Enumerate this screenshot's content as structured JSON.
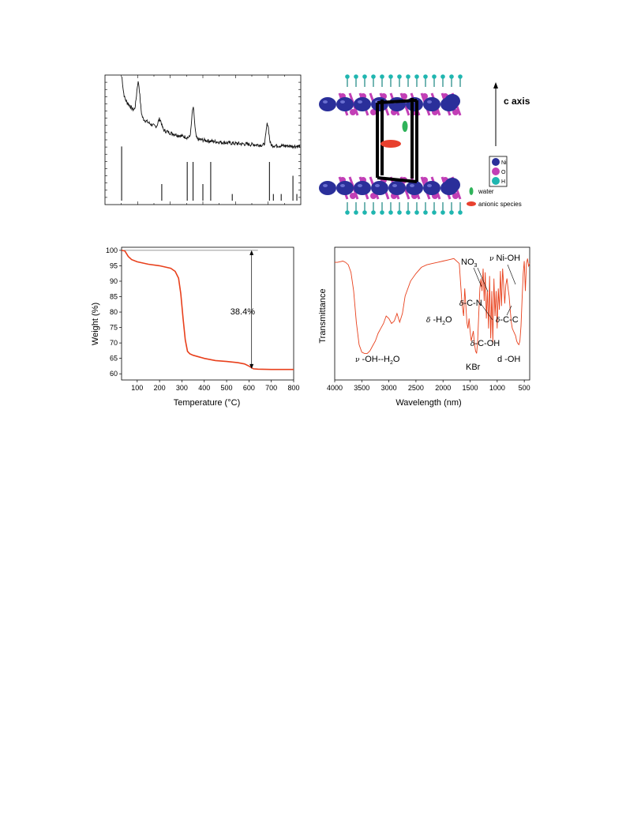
{
  "chart_data": [
    {
      "type": "line",
      "panel": "xrd",
      "title": "",
      "xlabel": "",
      "ylabel": "",
      "peaks": [
        {
          "x": 0.08,
          "h": 0.22
        },
        {
          "x": 0.17,
          "h": 0.3
        },
        {
          "x": 0.28,
          "h": 0.09
        },
        {
          "x": 0.45,
          "h": 0.28
        },
        {
          "x": 0.83,
          "h": 0.2
        }
      ],
      "reference_lines": [
        {
          "x": 0.085,
          "h": 0.98
        },
        {
          "x": 0.29,
          "h": 0.3
        },
        {
          "x": 0.42,
          "h": 0.7
        },
        {
          "x": 0.45,
          "h": 0.7
        },
        {
          "x": 0.5,
          "h": 0.3
        },
        {
          "x": 0.54,
          "h": 0.7
        },
        {
          "x": 0.65,
          "h": 0.12
        },
        {
          "x": 0.84,
          "h": 0.7
        },
        {
          "x": 0.86,
          "h": 0.12
        },
        {
          "x": 0.9,
          "h": 0.12
        },
        {
          "x": 0.96,
          "h": 0.45
        },
        {
          "x": 0.98,
          "h": 0.12
        }
      ]
    },
    {
      "type": "line",
      "panel": "tga",
      "title": "",
      "xlabel": "Temperature (°C)",
      "ylabel": "Weight (%)",
      "xlim": [
        30,
        800
      ],
      "ylim": [
        58,
        101
      ],
      "xticks": [
        100,
        200,
        300,
        400,
        500,
        600,
        700,
        800
      ],
      "yticks": [
        60,
        65,
        70,
        75,
        80,
        85,
        90,
        95,
        100
      ],
      "series": [
        {
          "color": "#e8401c",
          "x": [
            30,
            45,
            60,
            75,
            100,
            150,
            200,
            250,
            270,
            285,
            295,
            305,
            315,
            325,
            335,
            350,
            400,
            450,
            500,
            550,
            580,
            600,
            620,
            640,
            700,
            750,
            800
          ],
          "y": [
            100,
            99.8,
            98,
            97,
            96.3,
            95.5,
            95.0,
            94.2,
            93.2,
            91.0,
            86,
            78,
            71,
            67.3,
            66.5,
            66.0,
            65.0,
            64.3,
            64.0,
            63.6,
            63.2,
            62.5,
            61.6,
            61.5,
            61.4,
            61.4,
            61.4
          ]
        }
      ],
      "reference_line": {
        "y": 100,
        "x": [
          40,
          640
        ]
      },
      "annotation": {
        "text": "38.4%",
        "x": 640,
        "y_top": 100,
        "y_bottom": 61.6
      }
    },
    {
      "type": "line",
      "panel": "ir",
      "title": "",
      "xlabel": "Wavelength (nm)",
      "ylabel": "Transmittance",
      "xlim": [
        4000,
        400
      ],
      "ylim": [
        0,
        100
      ],
      "xticks": [
        4000,
        3500,
        3000,
        2500,
        2000,
        1500,
        1000,
        500
      ],
      "series": [
        {
          "color": "#e8401c",
          "x": [
            4000,
            3950,
            3900,
            3850,
            3800,
            3750,
            3700,
            3650,
            3600,
            3550,
            3500,
            3450,
            3400,
            3350,
            3300,
            3250,
            3200,
            3150,
            3100,
            3050,
            3000,
            2950,
            2900,
            2850,
            2800,
            2750,
            2700,
            2600,
            2500,
            2400,
            2300,
            2200,
            2100,
            2000,
            1900,
            1800,
            1700,
            1650,
            1620,
            1600,
            1580,
            1560,
            1540,
            1520,
            1500,
            1480,
            1460,
            1440,
            1420,
            1400,
            1380,
            1360,
            1340,
            1320,
            1300,
            1280,
            1260,
            1240,
            1220,
            1200,
            1180,
            1160,
            1140,
            1120,
            1100,
            1080,
            1060,
            1040,
            1020,
            1000,
            980,
            960,
            940,
            920,
            900,
            880,
            860,
            840,
            820,
            800,
            780,
            760,
            740,
            720,
            700,
            680,
            660,
            640,
            620,
            600,
            580,
            560,
            540,
            520,
            500,
            480,
            460,
            440,
            420,
            400
          ],
          "y": [
            93,
            93,
            93.5,
            94,
            93,
            91,
            85,
            70,
            45,
            27,
            21,
            20,
            20,
            22,
            26,
            30,
            36,
            40,
            44,
            50,
            48,
            44,
            46,
            52,
            45,
            52,
            66,
            78,
            84,
            89,
            91,
            92,
            93,
            94,
            95,
            96,
            92,
            60,
            50,
            72,
            60,
            45,
            40,
            48,
            38,
            30,
            34,
            38,
            28,
            22,
            20,
            30,
            52,
            72,
            80,
            70,
            88,
            62,
            85,
            48,
            70,
            40,
            82,
            32,
            70,
            28,
            80,
            50,
            70,
            40,
            72,
            55,
            86,
            58,
            88,
            74,
            60,
            75,
            80,
            72,
            66,
            55,
            45,
            40,
            38,
            36,
            34,
            30,
            28,
            27,
            30,
            42,
            64,
            84,
            94,
            70,
            92,
            96,
            90,
            92
          ]
        }
      ],
      "annotations": [
        {
          "greek": "ν",
          "text": " -OH--H",
          "sub": "2",
          "tail": "O"
        },
        {
          "text": "NO",
          "sub": "3",
          "tail": ""
        },
        {
          "greek": "ν",
          "text": " Ni-OH",
          "sub": "",
          "tail": ""
        },
        {
          "greek": "δ",
          "text": "-C-N",
          "sub": "",
          "tail": ""
        },
        {
          "greek": "δ",
          "text": " -H",
          "sub": "2",
          "tail": "O"
        },
        {
          "greek": "δ",
          "text": "-C-C",
          "sub": "",
          "tail": ""
        },
        {
          "greek": "δ",
          "text": "-C-OH",
          "sub": "",
          "tail": ""
        },
        {
          "text": "KBr"
        },
        {
          "text": "d -OH"
        }
      ]
    }
  ],
  "structure": {
    "axis_label": "c axis",
    "legend": [
      {
        "label": "Ni",
        "color": "#2a2f9a"
      },
      {
        "label": "O",
        "color": "#c23fb6"
      },
      {
        "label": "H",
        "color": "#1fb6b0"
      }
    ],
    "extra_legend": [
      {
        "label": "water",
        "color": "#2fb35a"
      },
      {
        "label": "anionic species",
        "color": "#e8402e"
      }
    ]
  }
}
